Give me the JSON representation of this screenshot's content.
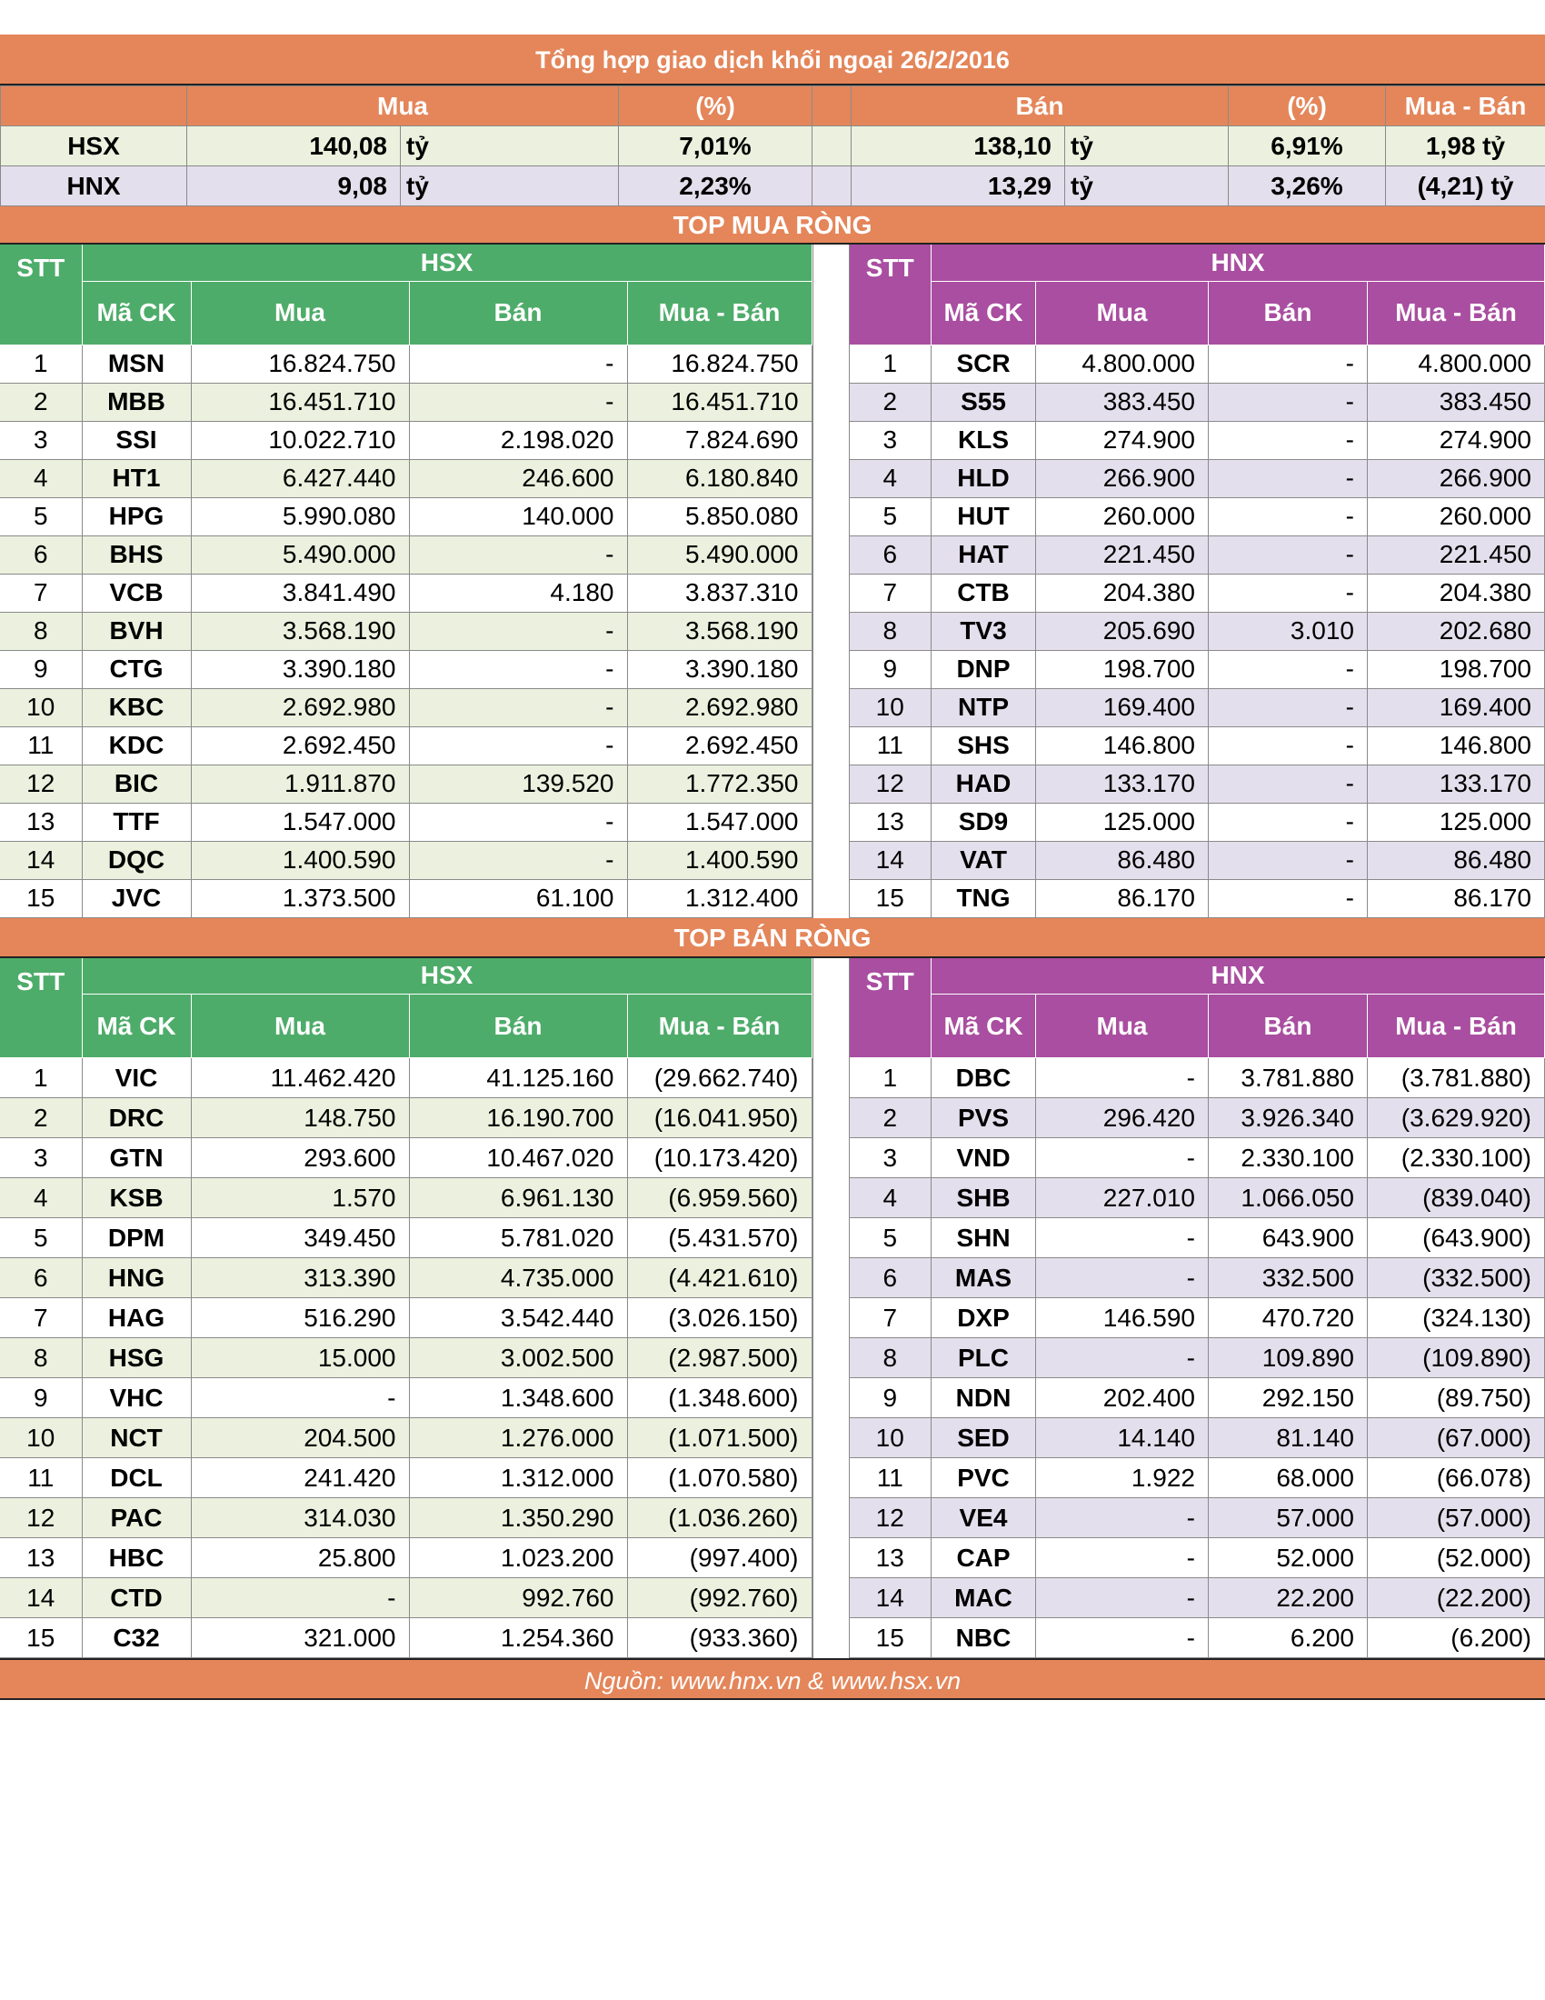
{
  "title": "Tổng hợp giao dịch khối ngoại 26/2/2016",
  "summary": {
    "headers": {
      "buy": "Mua",
      "buy_pct": "(%)",
      "sell": "Bán",
      "sell_pct": "(%)",
      "net": "Mua - Bán"
    },
    "rows": [
      {
        "exchange": "HSX",
        "buy": "140,08",
        "buy_unit": "tỷ",
        "buy_pct": "7,01%",
        "sell": "138,10",
        "sell_unit": "tỷ",
        "sell_pct": "6,91%",
        "net": "1,98 tỷ"
      },
      {
        "exchange": "HNX",
        "buy": "9,08",
        "buy_unit": "tỷ",
        "buy_pct": "2,23%",
        "sell": "13,29",
        "sell_unit": "tỷ",
        "sell_pct": "3,26%",
        "net": "(4,21) tỷ"
      }
    ]
  },
  "headers": {
    "stt": "STT",
    "code": "Mã CK",
    "buy": "Mua",
    "sell": "Bán",
    "net": "Mua - Bán"
  },
  "top_buy": {
    "label": "TOP MUA RÒNG",
    "hsx": {
      "exchange": "HSX",
      "rows": [
        {
          "stt": "1",
          "code": "MSN",
          "buy": "16.824.750",
          "sell": "-",
          "net": "16.824.750"
        },
        {
          "stt": "2",
          "code": "MBB",
          "buy": "16.451.710",
          "sell": "-",
          "net": "16.451.710"
        },
        {
          "stt": "3",
          "code": "SSI",
          "buy": "10.022.710",
          "sell": "2.198.020",
          "net": "7.824.690"
        },
        {
          "stt": "4",
          "code": "HT1",
          "buy": "6.427.440",
          "sell": "246.600",
          "net": "6.180.840"
        },
        {
          "stt": "5",
          "code": "HPG",
          "buy": "5.990.080",
          "sell": "140.000",
          "net": "5.850.080"
        },
        {
          "stt": "6",
          "code": "BHS",
          "buy": "5.490.000",
          "sell": "-",
          "net": "5.490.000"
        },
        {
          "stt": "7",
          "code": "VCB",
          "buy": "3.841.490",
          "sell": "4.180",
          "net": "3.837.310"
        },
        {
          "stt": "8",
          "code": "BVH",
          "buy": "3.568.190",
          "sell": "-",
          "net": "3.568.190"
        },
        {
          "stt": "9",
          "code": "CTG",
          "buy": "3.390.180",
          "sell": "-",
          "net": "3.390.180"
        },
        {
          "stt": "10",
          "code": "KBC",
          "buy": "2.692.980",
          "sell": "-",
          "net": "2.692.980"
        },
        {
          "stt": "11",
          "code": "KDC",
          "buy": "2.692.450",
          "sell": "-",
          "net": "2.692.450"
        },
        {
          "stt": "12",
          "code": "BIC",
          "buy": "1.911.870",
          "sell": "139.520",
          "net": "1.772.350"
        },
        {
          "stt": "13",
          "code": "TTF",
          "buy": "1.547.000",
          "sell": "-",
          "net": "1.547.000"
        },
        {
          "stt": "14",
          "code": "DQC",
          "buy": "1.400.590",
          "sell": "-",
          "net": "1.400.590"
        },
        {
          "stt": "15",
          "code": "JVC",
          "buy": "1.373.500",
          "sell": "61.100",
          "net": "1.312.400"
        }
      ]
    },
    "hnx": {
      "exchange": "HNX",
      "rows": [
        {
          "stt": "1",
          "code": "SCR",
          "buy": "4.800.000",
          "sell": "-",
          "net": "4.800.000"
        },
        {
          "stt": "2",
          "code": "S55",
          "buy": "383.450",
          "sell": "-",
          "net": "383.450"
        },
        {
          "stt": "3",
          "code": "KLS",
          "buy": "274.900",
          "sell": "-",
          "net": "274.900"
        },
        {
          "stt": "4",
          "code": "HLD",
          "buy": "266.900",
          "sell": "-",
          "net": "266.900"
        },
        {
          "stt": "5",
          "code": "HUT",
          "buy": "260.000",
          "sell": "-",
          "net": "260.000"
        },
        {
          "stt": "6",
          "code": "HAT",
          "buy": "221.450",
          "sell": "-",
          "net": "221.450"
        },
        {
          "stt": "7",
          "code": "CTB",
          "buy": "204.380",
          "sell": "-",
          "net": "204.380"
        },
        {
          "stt": "8",
          "code": "TV3",
          "buy": "205.690",
          "sell": "3.010",
          "net": "202.680"
        },
        {
          "stt": "9",
          "code": "DNP",
          "buy": "198.700",
          "sell": "-",
          "net": "198.700"
        },
        {
          "stt": "10",
          "code": "NTP",
          "buy": "169.400",
          "sell": "-",
          "net": "169.400"
        },
        {
          "stt": "11",
          "code": "SHS",
          "buy": "146.800",
          "sell": "-",
          "net": "146.800"
        },
        {
          "stt": "12",
          "code": "HAD",
          "buy": "133.170",
          "sell": "-",
          "net": "133.170"
        },
        {
          "stt": "13",
          "code": "SD9",
          "buy": "125.000",
          "sell": "-",
          "net": "125.000"
        },
        {
          "stt": "14",
          "code": "VAT",
          "buy": "86.480",
          "sell": "-",
          "net": "86.480"
        },
        {
          "stt": "15",
          "code": "TNG",
          "buy": "86.170",
          "sell": "-",
          "net": "86.170"
        }
      ]
    }
  },
  "top_sell": {
    "label": "TOP BÁN RÒNG",
    "hsx": {
      "exchange": "HSX",
      "rows": [
        {
          "stt": "1",
          "code": "VIC",
          "buy": "11.462.420",
          "sell": "41.125.160",
          "net": "(29.662.740)"
        },
        {
          "stt": "2",
          "code": "DRC",
          "buy": "148.750",
          "sell": "16.190.700",
          "net": "(16.041.950)"
        },
        {
          "stt": "3",
          "code": "GTN",
          "buy": "293.600",
          "sell": "10.467.020",
          "net": "(10.173.420)"
        },
        {
          "stt": "4",
          "code": "KSB",
          "buy": "1.570",
          "sell": "6.961.130",
          "net": "(6.959.560)"
        },
        {
          "stt": "5",
          "code": "DPM",
          "buy": "349.450",
          "sell": "5.781.020",
          "net": "(5.431.570)"
        },
        {
          "stt": "6",
          "code": "HNG",
          "buy": "313.390",
          "sell": "4.735.000",
          "net": "(4.421.610)"
        },
        {
          "stt": "7",
          "code": "HAG",
          "buy": "516.290",
          "sell": "3.542.440",
          "net": "(3.026.150)"
        },
        {
          "stt": "8",
          "code": "HSG",
          "buy": "15.000",
          "sell": "3.002.500",
          "net": "(2.987.500)"
        },
        {
          "stt": "9",
          "code": "VHC",
          "buy": "-",
          "sell": "1.348.600",
          "net": "(1.348.600)"
        },
        {
          "stt": "10",
          "code": "NCT",
          "buy": "204.500",
          "sell": "1.276.000",
          "net": "(1.071.500)"
        },
        {
          "stt": "11",
          "code": "DCL",
          "buy": "241.420",
          "sell": "1.312.000",
          "net": "(1.070.580)"
        },
        {
          "stt": "12",
          "code": "PAC",
          "buy": "314.030",
          "sell": "1.350.290",
          "net": "(1.036.260)"
        },
        {
          "stt": "13",
          "code": "HBC",
          "buy": "25.800",
          "sell": "1.023.200",
          "net": "(997.400)"
        },
        {
          "stt": "14",
          "code": "CTD",
          "buy": "-",
          "sell": "992.760",
          "net": "(992.760)"
        },
        {
          "stt": "15",
          "code": "C32",
          "buy": "321.000",
          "sell": "1.254.360",
          "net": "(933.360)"
        }
      ]
    },
    "hnx": {
      "exchange": "HNX",
      "rows": [
        {
          "stt": "1",
          "code": "DBC",
          "buy": "-",
          "sell": "3.781.880",
          "net": "(3.781.880)"
        },
        {
          "stt": "2",
          "code": "PVS",
          "buy": "296.420",
          "sell": "3.926.340",
          "net": "(3.629.920)"
        },
        {
          "stt": "3",
          "code": "VND",
          "buy": "-",
          "sell": "2.330.100",
          "net": "(2.330.100)"
        },
        {
          "stt": "4",
          "code": "SHB",
          "buy": "227.010",
          "sell": "1.066.050",
          "net": "(839.040)"
        },
        {
          "stt": "5",
          "code": "SHN",
          "buy": "-",
          "sell": "643.900",
          "net": "(643.900)"
        },
        {
          "stt": "6",
          "code": "MAS",
          "buy": "-",
          "sell": "332.500",
          "net": "(332.500)"
        },
        {
          "stt": "7",
          "code": "DXP",
          "buy": "146.590",
          "sell": "470.720",
          "net": "(324.130)"
        },
        {
          "stt": "8",
          "code": "PLC",
          "buy": "-",
          "sell": "109.890",
          "net": "(109.890)"
        },
        {
          "stt": "9",
          "code": "NDN",
          "buy": "202.400",
          "sell": "292.150",
          "net": "(89.750)"
        },
        {
          "stt": "10",
          "code": "SED",
          "buy": "14.140",
          "sell": "81.140",
          "net": "(67.000)"
        },
        {
          "stt": "11",
          "code": "PVC",
          "buy": "1.922",
          "sell": "68.000",
          "net": "(66.078)"
        },
        {
          "stt": "12",
          "code": "VE4",
          "buy": "-",
          "sell": "57.000",
          "net": "(57.000)"
        },
        {
          "stt": "13",
          "code": "CAP",
          "buy": "-",
          "sell": "52.000",
          "net": "(52.000)"
        },
        {
          "stt": "14",
          "code": "MAC",
          "buy": "-",
          "sell": "22.200",
          "net": "(22.200)"
        },
        {
          "stt": "15",
          "code": "NBC",
          "buy": "-",
          "sell": "6.200",
          "net": "(6.200)"
        }
      ]
    }
  },
  "source": "Nguồn: www.hnx.vn   &   www.hsx.vn",
  "colors": {
    "band": "#e4865a",
    "hsx_header": "#4eac6a",
    "hnx_header": "#a94ea0",
    "hsx_alt_row": "#ebf1de",
    "hnx_alt_row": "#e4dfec"
  }
}
